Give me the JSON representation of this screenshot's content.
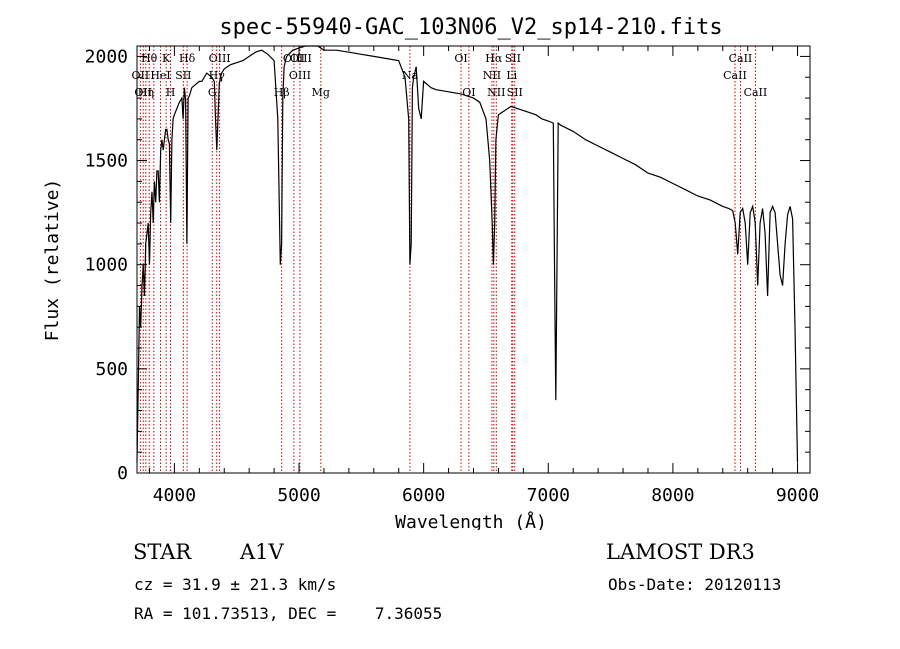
{
  "chart_data": {
    "type": "line",
    "title": "spec-55940-GAC_103N06_V2_sp14-210.fits",
    "xlabel": "Wavelength (Å)",
    "ylabel": "Flux (relative)",
    "xlim": [
      3700,
      9100
    ],
    "ylim": [
      0,
      2050
    ],
    "xticks": [
      4000,
      5000,
      6000,
      7000,
      8000,
      9000
    ],
    "yticks": [
      0,
      500,
      1000,
      1500,
      2000
    ],
    "series": [
      {
        "name": "flux",
        "x": [
          3700,
          3710,
          3720,
          3730,
          3740,
          3750,
          3760,
          3770,
          3780,
          3790,
          3800,
          3810,
          3820,
          3830,
          3840,
          3850,
          3860,
          3870,
          3880,
          3890,
          3900,
          3910,
          3920,
          3930,
          3940,
          3950,
          3960,
          3970,
          3980,
          3990,
          4000,
          4020,
          4040,
          4060,
          4070,
          4080,
          4090,
          4100,
          4110,
          4120,
          4140,
          4160,
          4180,
          4200,
          4220,
          4240,
          4260,
          4280,
          4300,
          4320,
          4330,
          4340,
          4350,
          4360,
          4370,
          4380,
          4400,
          4450,
          4500,
          4550,
          4600,
          4650,
          4700,
          4750,
          4800,
          4830,
          4850,
          4860,
          4870,
          4880,
          4900,
          4950,
          5000,
          5050,
          5100,
          5150,
          5200,
          5300,
          5400,
          5500,
          5600,
          5700,
          5800,
          5850,
          5880,
          5890,
          5900,
          5910,
          5920,
          5940,
          5960,
          5980,
          6000,
          6020,
          6040,
          6060,
          6100,
          6200,
          6300,
          6400,
          6450,
          6500,
          6530,
          6550,
          6560,
          6570,
          6580,
          6600,
          6650,
          6700,
          6800,
          6900,
          6950,
          7000,
          7040,
          7050,
          7060,
          7070,
          7080,
          7100,
          7200,
          7300,
          7400,
          7500,
          7600,
          7700,
          7800,
          7900,
          8000,
          8100,
          8200,
          8300,
          8400,
          8450,
          8480,
          8500,
          8520,
          8540,
          8560,
          8580,
          8600,
          8620,
          8640,
          8660,
          8680,
          8700,
          8720,
          8740,
          8760,
          8780,
          8800,
          8820,
          8840,
          8860,
          8880,
          8900,
          8920,
          8940,
          8960,
          8980,
          9000
        ],
        "y": [
          50,
          400,
          800,
          700,
          900,
          1000,
          850,
          1100,
          1150,
          1200,
          1000,
          1250,
          1350,
          1200,
          1400,
          1300,
          1450,
          1450,
          1300,
          1550,
          1600,
          1550,
          1600,
          1650,
          1650,
          1600,
          1580,
          1200,
          1600,
          1700,
          1720,
          1750,
          1780,
          1800,
          1700,
          1850,
          1790,
          1100,
          1800,
          1810,
          1850,
          1860,
          1870,
          1880,
          1880,
          1900,
          1920,
          1910,
          1900,
          1880,
          1700,
          1550,
          1700,
          1870,
          1900,
          1920,
          1940,
          1960,
          1970,
          1980,
          2000,
          2020,
          2030,
          2010,
          1980,
          1700,
          1000,
          1100,
          1800,
          1950,
          2000,
          2030,
          2040,
          2050,
          2050,
          2050,
          2030,
          2030,
          2020,
          2010,
          2000,
          1990,
          1980,
          1900,
          1700,
          1000,
          1100,
          1850,
          1900,
          1950,
          1750,
          1700,
          1880,
          1870,
          1860,
          1850,
          1840,
          1830,
          1820,
          1800,
          1780,
          1700,
          1500,
          1200,
          1000,
          1200,
          1600,
          1720,
          1740,
          1760,
          1740,
          1720,
          1700,
          1690,
          1680,
          1000,
          350,
          1000,
          1680,
          1670,
          1640,
          1600,
          1570,
          1540,
          1510,
          1480,
          1440,
          1420,
          1390,
          1360,
          1330,
          1310,
          1280,
          1270,
          1260,
          1200,
          1050,
          1250,
          1270,
          1200,
          1000,
          1250,
          1280,
          1200,
          900,
          1200,
          1270,
          1150,
          850,
          1250,
          1280,
          1250,
          1100,
          950,
          900,
          1100,
          1240,
          1280,
          1220,
          700,
          50
        ]
      }
    ],
    "line_labels": [
      {
        "x": 3727,
        "row": 1,
        "text": "OII"
      },
      {
        "x": 3750,
        "row": 2,
        "text": "OII"
      },
      {
        "x": 3771,
        "row": 2,
        "text": "Hη"
      },
      {
        "x": 3798,
        "row": 0,
        "text": "Hθ"
      },
      {
        "x": 3889,
        "row": 1,
        "text": "HeI"
      },
      {
        "x": 3934,
        "row": 0,
        "text": "K"
      },
      {
        "x": 3969,
        "row": 2,
        "text": "H"
      },
      {
        "x": 4072,
        "row": 1,
        "text": "SII"
      },
      {
        "x": 4102,
        "row": 0,
        "text": "Hδ"
      },
      {
        "x": 4304,
        "row": 2,
        "text": "G"
      },
      {
        "x": 4340,
        "row": 1,
        "text": "Hγ"
      },
      {
        "x": 4363,
        "row": 0,
        "text": "OIII"
      },
      {
        "x": 4861,
        "row": 2,
        "text": "Hβ"
      },
      {
        "x": 4959,
        "row": 0,
        "text": "OIII"
      },
      {
        "x": 5007,
        "row": 1,
        "text": "OIII"
      },
      {
        "x": 5015,
        "row": 0,
        "text": "OIII"
      },
      {
        "x": 5175,
        "row": 2,
        "text": "Mg"
      },
      {
        "x": 5890,
        "row": 1,
        "text": "Na"
      },
      {
        "x": 6300,
        "row": 0,
        "text": "OI"
      },
      {
        "x": 6363,
        "row": 2,
        "text": "OI"
      },
      {
        "x": 6548,
        "row": 1,
        "text": "NII"
      },
      {
        "x": 6563,
        "row": 0,
        "text": "Hα"
      },
      {
        "x": 6583,
        "row": 2,
        "text": "NII"
      },
      {
        "x": 6707,
        "row": 1,
        "text": "Li"
      },
      {
        "x": 6716,
        "row": 0,
        "text": "SII"
      },
      {
        "x": 6731,
        "row": 2,
        "text": "SII"
      },
      {
        "x": 8498,
        "row": 1,
        "text": "CaII"
      },
      {
        "x": 8542,
        "row": 0,
        "text": "CaII"
      },
      {
        "x": 8662,
        "row": 2,
        "text": "CaII"
      }
    ],
    "line_markers": [
      3727,
      3750,
      3771,
      3798,
      3835,
      3889,
      3934,
      3969,
      4072,
      4102,
      4304,
      4340,
      4363,
      4861,
      4959,
      5007,
      5175,
      5890,
      6300,
      6363,
      6548,
      6563,
      6583,
      6707,
      6716,
      6731,
      8498,
      8542,
      8662
    ],
    "line_color": "#000000",
    "marker_color": "#cc0000"
  },
  "info": {
    "class_label": "STAR",
    "subclass": "A1V",
    "survey": "LAMOST DR3",
    "cz": "cz = 31.9 ± 21.3 km/s",
    "obs_date": "Obs-Date: 20120113",
    "coords": "RA = 101.73513, DEC =    7.36055"
  }
}
